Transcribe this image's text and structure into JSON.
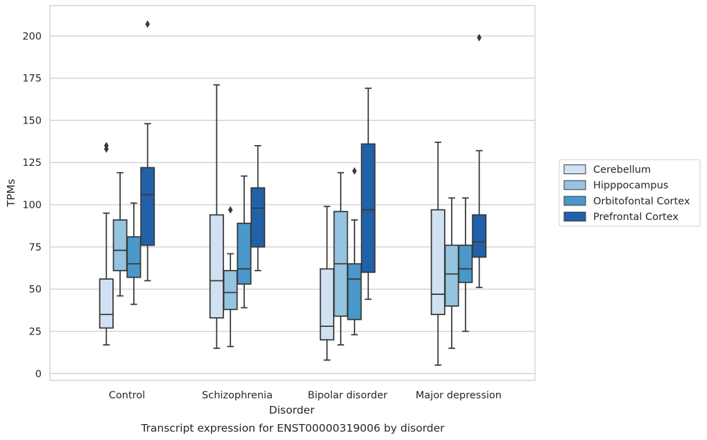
{
  "chart_data": {
    "type": "boxplot",
    "caption": "Transcript expression for ENST00000319006 by disorder",
    "xlabel": "Disorder",
    "ylabel": "TPMs",
    "ylim": [
      -4,
      218
    ],
    "yticks": [
      0,
      25,
      50,
      75,
      100,
      125,
      150,
      175,
      200
    ],
    "grid": true,
    "legend_position": "right",
    "categories": [
      "Control",
      "Schizophrenia",
      "Bipolar disorder",
      "Major depression"
    ],
    "series": [
      {
        "name": "Cerebellum",
        "color": "#d0e1f2",
        "boxes": [
          {
            "whislo": 17,
            "q1": 27,
            "med": 35,
            "q3": 56,
            "whishi": 95,
            "fliers": [
              133,
              135
            ]
          },
          {
            "whislo": 15,
            "q1": 33,
            "med": 55,
            "q3": 94,
            "whishi": 171,
            "fliers": []
          },
          {
            "whislo": 8,
            "q1": 20,
            "med": 28,
            "q3": 62,
            "whishi": 99,
            "fliers": []
          },
          {
            "whislo": 5,
            "q1": 35,
            "med": 47,
            "q3": 97,
            "whishi": 137,
            "fliers": []
          }
        ]
      },
      {
        "name": "Hipppocampus",
        "color": "#94c4df",
        "boxes": [
          {
            "whislo": 46,
            "q1": 61,
            "med": 73,
            "q3": 91,
            "whishi": 119,
            "fliers": []
          },
          {
            "whislo": 16,
            "q1": 38,
            "med": 48,
            "q3": 61,
            "whishi": 71,
            "fliers": [
              97
            ]
          },
          {
            "whislo": 17,
            "q1": 34,
            "med": 65,
            "q3": 96,
            "whishi": 119,
            "fliers": []
          },
          {
            "whislo": 15,
            "q1": 40,
            "med": 59,
            "q3": 76,
            "whishi": 104,
            "fliers": []
          }
        ]
      },
      {
        "name": "Orbitofontal Cortex",
        "color": "#4a98c9",
        "boxes": [
          {
            "whislo": 41,
            "q1": 57,
            "med": 65,
            "q3": 81,
            "whishi": 101,
            "fliers": []
          },
          {
            "whislo": 39,
            "q1": 53,
            "med": 62,
            "q3": 89,
            "whishi": 117,
            "fliers": []
          },
          {
            "whislo": 23,
            "q1": 32,
            "med": 56,
            "q3": 65,
            "whishi": 91,
            "fliers": [
              120
            ]
          },
          {
            "whislo": 25,
            "q1": 54,
            "med": 62,
            "q3": 76,
            "whishi": 104,
            "fliers": []
          }
        ]
      },
      {
        "name": "Prefrontal Cortex",
        "color": "#2161a9",
        "boxes": [
          {
            "whislo": 55,
            "q1": 76,
            "med": 106,
            "q3": 122,
            "whishi": 148,
            "fliers": [
              207
            ]
          },
          {
            "whislo": 61,
            "q1": 75,
            "med": 98,
            "q3": 110,
            "whishi": 135,
            "fliers": []
          },
          {
            "whislo": 44,
            "q1": 60,
            "med": 97,
            "q3": 136,
            "whishi": 169,
            "fliers": []
          },
          {
            "whislo": 51,
            "q1": 69,
            "med": 78,
            "q3": 94,
            "whishi": 132,
            "fliers": [
              199
            ]
          }
        ]
      }
    ]
  }
}
